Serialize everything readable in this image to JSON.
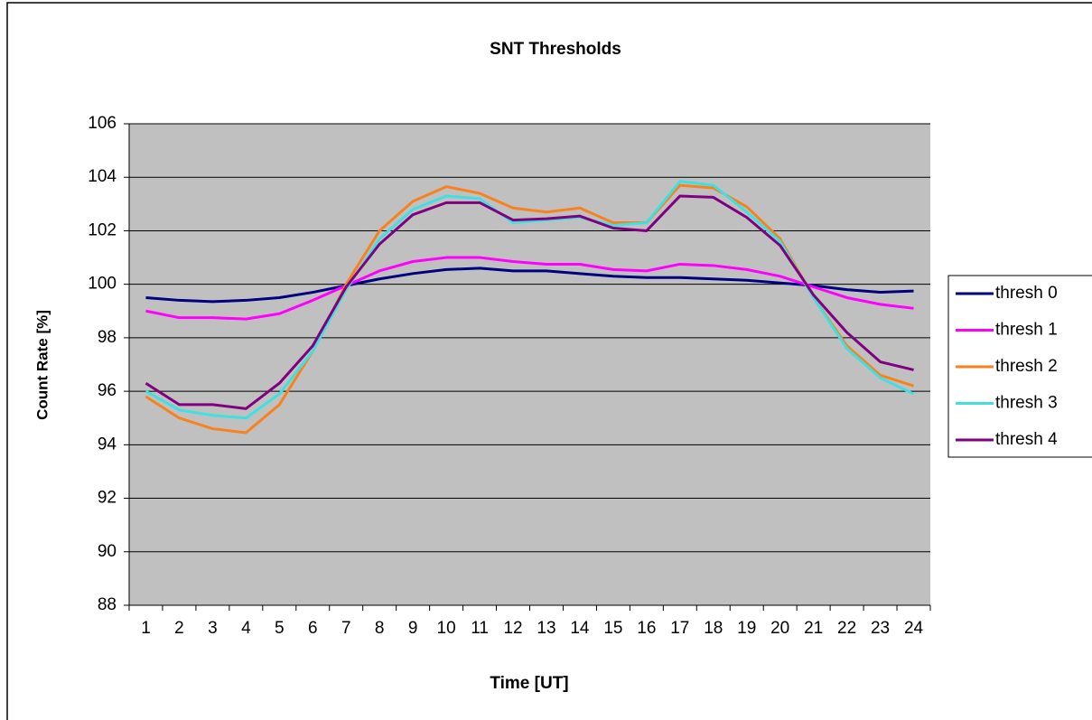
{
  "chart_data": {
    "type": "line",
    "title": "SNT Thresholds",
    "x_label": "Time [UT]",
    "y_label": "Count Rate [%]",
    "categories": [
      "1",
      "2",
      "3",
      "4",
      "5",
      "6",
      "7",
      "8",
      "9",
      "10",
      "11",
      "12",
      "13",
      "14",
      "15",
      "16",
      "17",
      "18",
      "19",
      "20",
      "21",
      "22",
      "23",
      "24"
    ],
    "series": [
      {
        "name": "thresh 0",
        "color": "#000080",
        "values": [
          99.5,
          99.4,
          99.35,
          99.4,
          99.5,
          99.7,
          99.95,
          100.2,
          100.4,
          100.55,
          100.6,
          100.5,
          100.5,
          100.4,
          100.3,
          100.25,
          100.25,
          100.2,
          100.15,
          100.05,
          99.95,
          99.8,
          99.7,
          99.75
        ]
      },
      {
        "name": "thresh 1",
        "color": "#ff00ff",
        "values": [
          99.0,
          98.75,
          98.75,
          98.7,
          98.9,
          99.4,
          99.95,
          100.5,
          100.85,
          101.0,
          101.0,
          100.85,
          100.75,
          100.75,
          100.55,
          100.5,
          100.75,
          100.7,
          100.55,
          100.3,
          99.9,
          99.5,
          99.25,
          99.1
        ]
      },
      {
        "name": "thresh 2",
        "color": "#f7821e",
        "values": [
          95.8,
          95.0,
          94.6,
          94.45,
          95.5,
          97.5,
          100.0,
          102.0,
          103.1,
          103.65,
          103.4,
          102.85,
          102.7,
          102.85,
          102.3,
          102.3,
          103.7,
          103.6,
          102.9,
          101.7,
          99.5,
          97.7,
          96.6,
          96.2
        ]
      },
      {
        "name": "thresh 3",
        "color": "#40e0e0",
        "values": [
          96.0,
          95.3,
          95.1,
          95.0,
          95.9,
          97.5,
          99.8,
          101.7,
          102.8,
          103.3,
          103.2,
          102.3,
          102.4,
          102.5,
          102.2,
          102.3,
          103.85,
          103.7,
          102.7,
          101.6,
          99.5,
          97.6,
          96.5,
          95.9
        ]
      },
      {
        "name": "thresh 4",
        "color": "#800080",
        "values": [
          96.3,
          95.5,
          95.5,
          95.35,
          96.3,
          97.7,
          99.9,
          101.5,
          102.6,
          103.05,
          103.05,
          102.4,
          102.45,
          102.55,
          102.1,
          102.0,
          103.3,
          103.25,
          102.5,
          101.45,
          99.6,
          98.2,
          97.1,
          96.8
        ]
      }
    ],
    "ylim": [
      88,
      106
    ],
    "yticks": [
      88,
      90,
      92,
      94,
      96,
      98,
      100,
      102,
      104,
      106
    ],
    "grid": true,
    "legend": "right",
    "plot_background": "#c0c0c0"
  }
}
